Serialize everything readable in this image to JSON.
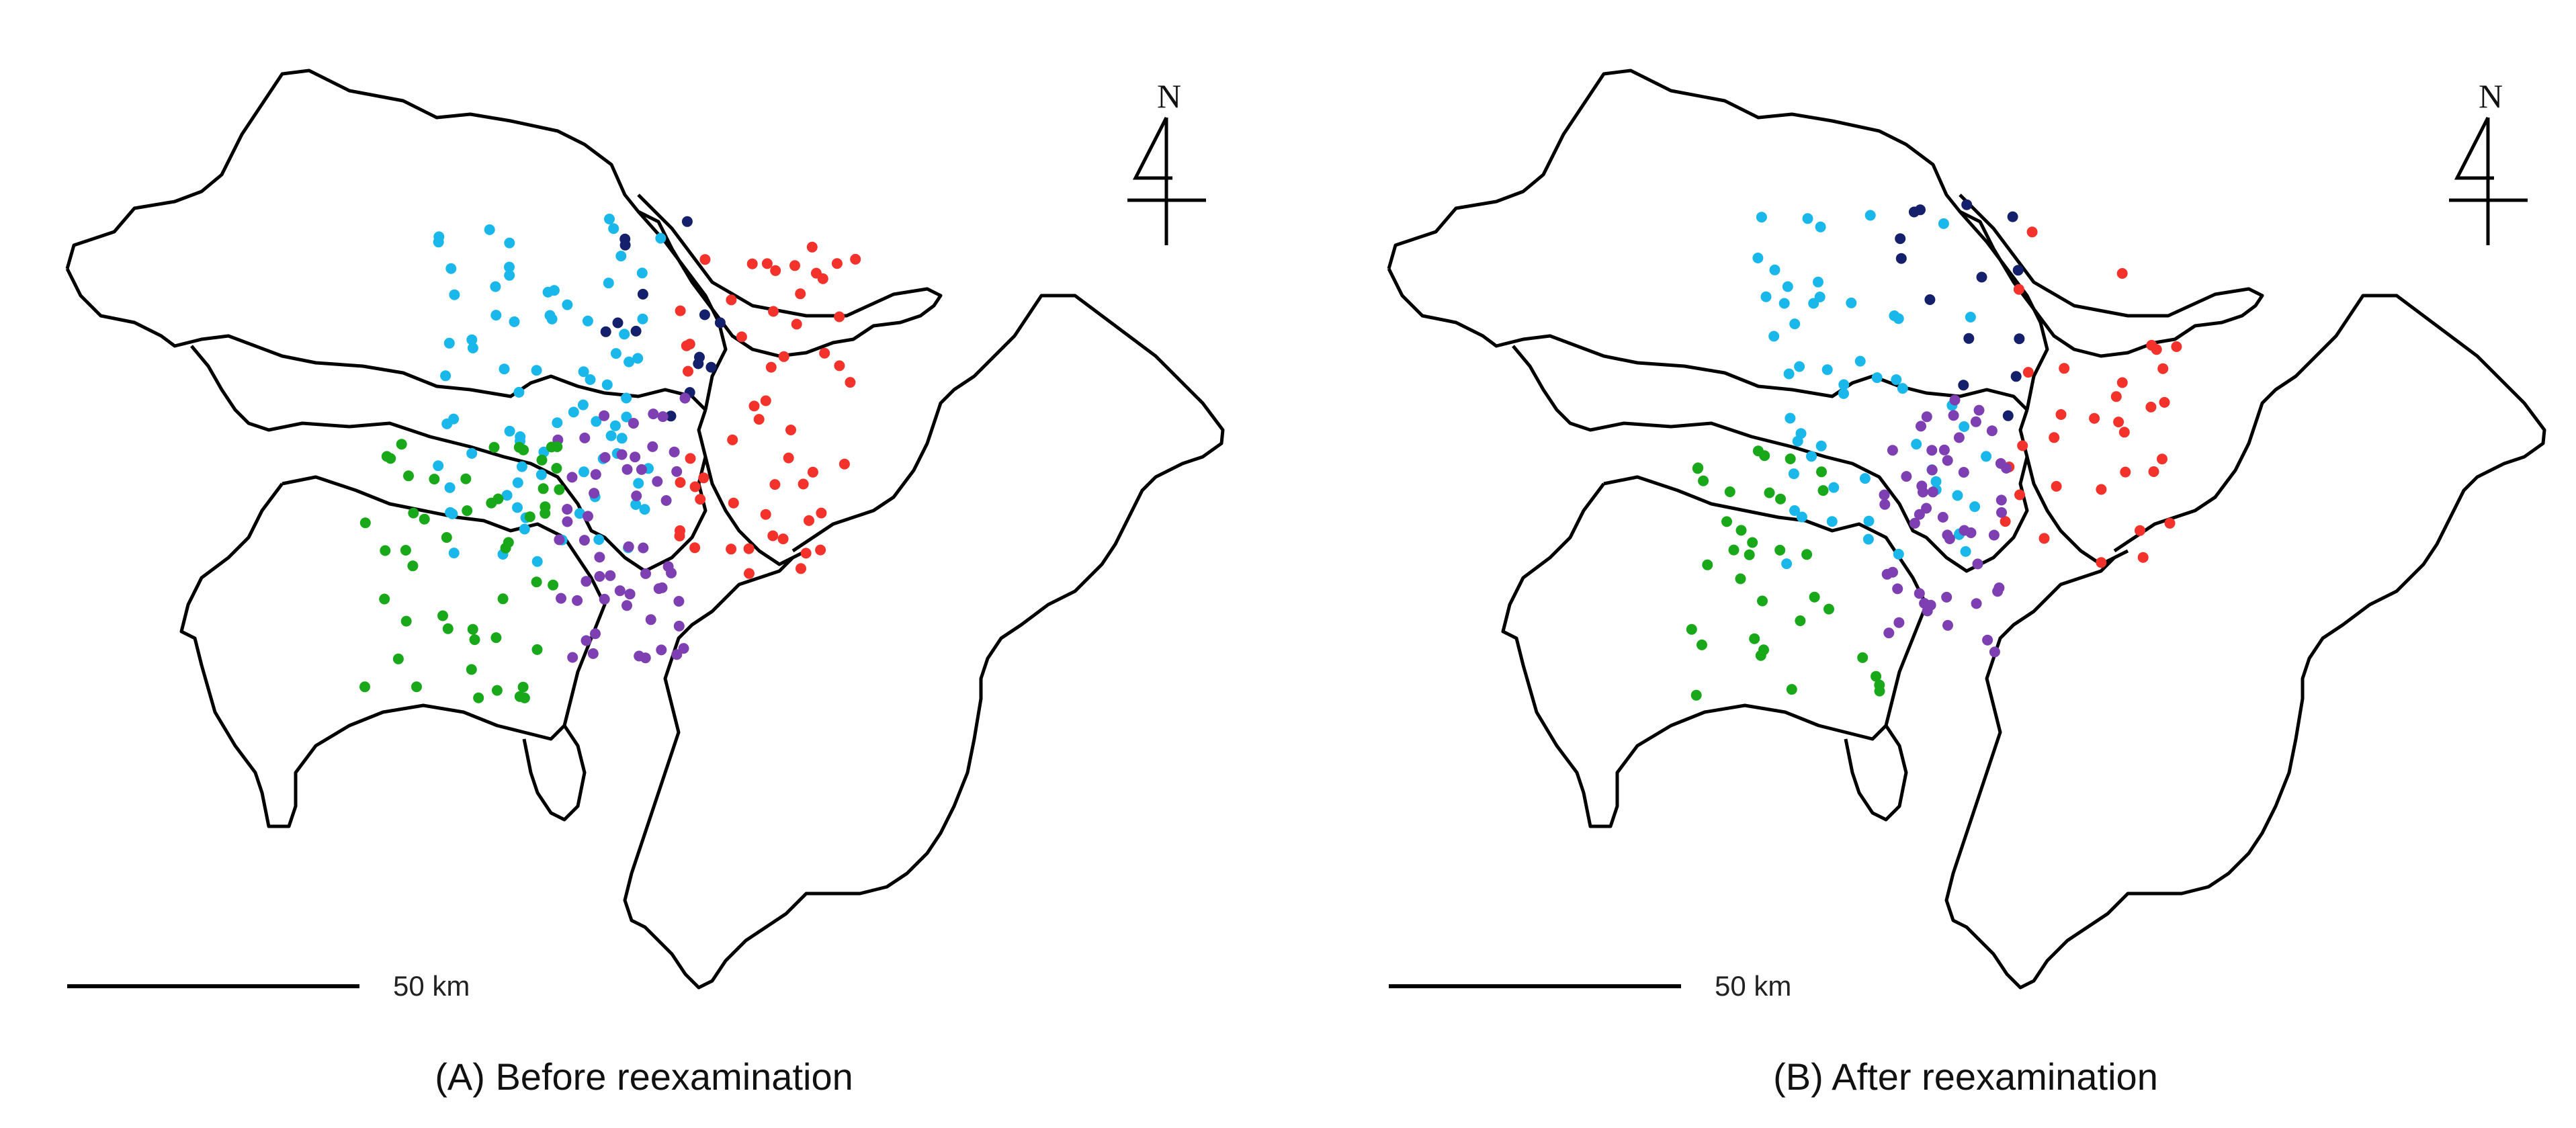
{
  "colors": {
    "cyan": "#1ab8ea",
    "navy": "#14206b",
    "red": "#f2322b",
    "purple": "#7d3fb2",
    "green": "#19a819",
    "outline": "#000000"
  },
  "panels": [
    {
      "id": "A",
      "caption": "(A) Before reexamination",
      "north_label": "N",
      "scale_label": "50 km",
      "clusters": [
        {
          "color": "cyan",
          "count": 80,
          "seed": 11,
          "region": "saitama-tokyo-west"
        },
        {
          "color": "navy",
          "count": 14,
          "seed": 12,
          "region": "boundary-northeast"
        },
        {
          "color": "red",
          "count": 55,
          "seed": 13,
          "region": "chiba-northwest"
        },
        {
          "color": "purple",
          "count": 55,
          "seed": 14,
          "region": "tokyo-bay-west"
        },
        {
          "color": "green",
          "count": 50,
          "seed": 15,
          "region": "kanagawa"
        }
      ]
    },
    {
      "id": "B",
      "caption": "(B) After reexamination",
      "north_label": "N",
      "scale_label": "50 km",
      "clusters": [
        {
          "color": "cyan",
          "count": 55,
          "seed": 21,
          "region": "saitama-tokyo-west"
        },
        {
          "color": "navy",
          "count": 14,
          "seed": 22,
          "region": "boundary-northeast"
        },
        {
          "color": "red",
          "count": 32,
          "seed": 23,
          "region": "chiba-northwest"
        },
        {
          "color": "purple",
          "count": 50,
          "seed": 24,
          "region": "tokyo-bay-west"
        },
        {
          "color": "green",
          "count": 35,
          "seed": 25,
          "region": "kanagawa"
        }
      ]
    }
  ]
}
